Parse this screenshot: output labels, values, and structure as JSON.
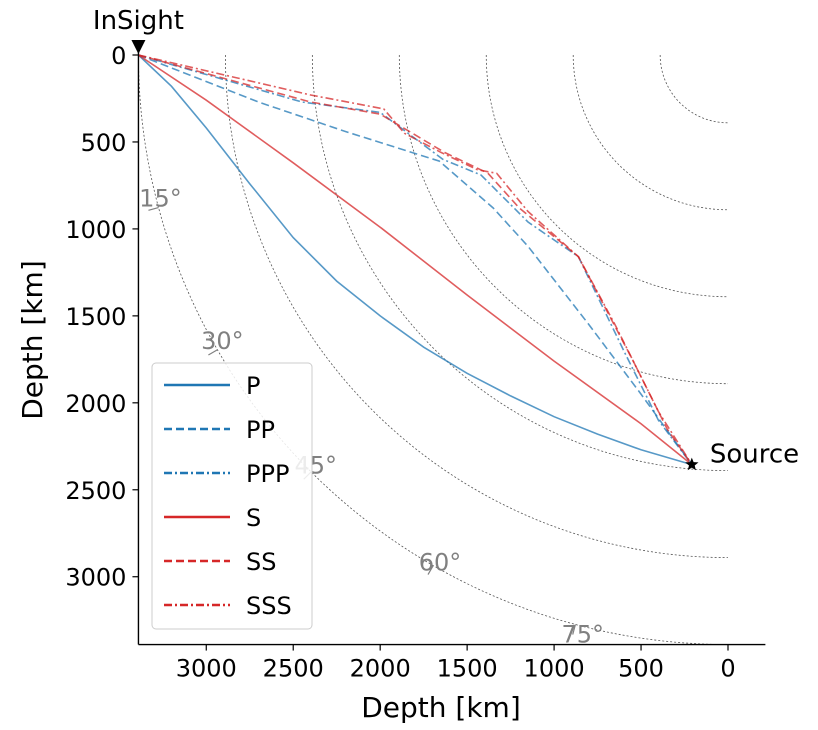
{
  "chart_data": {
    "type": "line",
    "xlabel": "Depth [km]",
    "ylabel": "Depth [km]",
    "xlim": [
      3390,
      -100
    ],
    "ylim": [
      3390,
      -100
    ],
    "x_ticks": [
      3000,
      2500,
      2000,
      1500,
      1000,
      500,
      0
    ],
    "y_ticks": [
      0,
      500,
      1000,
      1500,
      2000,
      2500,
      3000
    ],
    "depth_circles": [
      500,
      1000,
      1500,
      2000,
      2500,
      3000
    ],
    "angle_marks": [
      {
        "label": "15°",
        "deg": 15
      },
      {
        "label": "30°",
        "deg": 30
      },
      {
        "label": "45°",
        "deg": 45
      },
      {
        "label": "60°",
        "deg": 60
      },
      {
        "label": "75°",
        "deg": 75
      }
    ],
    "receiver": {
      "label": "InSight",
      "x": 3390,
      "y": 0
    },
    "source": {
      "label": "Source",
      "x": 208,
      "y": 2355
    },
    "legend_position": "lower-left",
    "colors": {
      "P": "#1f77b4",
      "S": "#d62728",
      "grid": "#555555",
      "angle_text": "#808080"
    },
    "series": [
      {
        "name": "P",
        "linestyle": "solid",
        "points": [
          [
            3390,
            0
          ],
          [
            3200,
            180
          ],
          [
            3000,
            420
          ],
          [
            2750,
            740
          ],
          [
            2500,
            1050
          ],
          [
            2250,
            1300
          ],
          [
            2000,
            1500
          ],
          [
            1750,
            1680
          ],
          [
            1500,
            1830
          ],
          [
            1250,
            1960
          ],
          [
            1000,
            2080
          ],
          [
            750,
            2180
          ],
          [
            500,
            2270
          ],
          [
            208,
            2355
          ]
        ]
      },
      {
        "name": "PP",
        "linestyle": "dashed",
        "points": [
          [
            3390,
            0
          ],
          [
            2700,
            270
          ],
          [
            2200,
            440
          ],
          [
            1660,
            610
          ],
          [
            1350,
            880
          ],
          [
            1150,
            1100
          ],
          [
            800,
            1550
          ],
          [
            500,
            1950
          ],
          [
            208,
            2355
          ]
        ]
      },
      {
        "name": "PPP",
        "linestyle": "dashdot",
        "points": [
          [
            3390,
            0
          ],
          [
            2450,
            270
          ],
          [
            2000,
            330
          ],
          [
            1640,
            600
          ],
          [
            1420,
            690
          ],
          [
            1150,
            960
          ],
          [
            860,
            1160
          ],
          [
            600,
            1700
          ],
          [
            400,
            2100
          ],
          [
            208,
            2355
          ]
        ]
      },
      {
        "name": "S",
        "linestyle": "solid",
        "points": [
          [
            3390,
            0
          ],
          [
            3000,
            260
          ],
          [
            2500,
            620
          ],
          [
            2000,
            990
          ],
          [
            1500,
            1380
          ],
          [
            1000,
            1760
          ],
          [
            500,
            2120
          ],
          [
            208,
            2355
          ]
        ]
      },
      {
        "name": "SS",
        "linestyle": "dashed",
        "points": [
          [
            3390,
            0
          ],
          [
            2400,
            270
          ],
          [
            2000,
            340
          ],
          [
            1630,
            560
          ],
          [
            1380,
            680
          ],
          [
            1200,
            880
          ],
          [
            860,
            1160
          ],
          [
            550,
            1750
          ],
          [
            350,
            2150
          ],
          [
            208,
            2355
          ]
        ]
      },
      {
        "name": "SSS",
        "linestyle": "dashdot",
        "points": [
          [
            3390,
            0
          ],
          [
            2400,
            230
          ],
          [
            1980,
            310
          ],
          [
            1860,
            450
          ],
          [
            1650,
            560
          ],
          [
            1440,
            660
          ],
          [
            1330,
            680
          ],
          [
            1150,
            900
          ],
          [
            860,
            1160
          ],
          [
            650,
            1550
          ],
          [
            400,
            2050
          ],
          [
            208,
            2355
          ]
        ]
      }
    ]
  }
}
